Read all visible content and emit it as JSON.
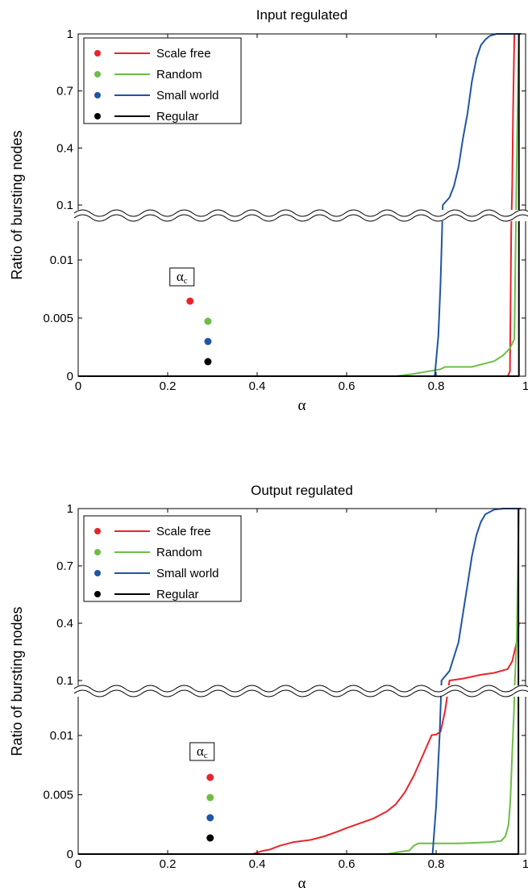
{
  "chart_data": [
    {
      "type": "line",
      "title": "Input regulated",
      "xlabel": "α",
      "ylabel": "Ratio of bursting nodes",
      "xlim": [
        0,
        1
      ],
      "x_ticks": [
        "0",
        "0.2",
        "0.4",
        "0.6",
        "0.8",
        "1"
      ],
      "y_ticks_lower": [
        "0",
        "0.005",
        "0.01"
      ],
      "y_ticks_upper": [
        "0.1",
        "0.4",
        "0.7",
        "1"
      ],
      "y_axis_note": "broken y-axis: linear 0–0.01 below the break, linear 0.1–1 above",
      "ylim_lower": [
        0,
        0.012
      ],
      "ylim_upper": [
        0.1,
        1
      ],
      "legend_position": "top-left",
      "alpha_c_label": "αc",
      "alpha_c_points": [
        {
          "series": "Scale free",
          "x": 0.25
        },
        {
          "series": "Random",
          "x": 0.29
        },
        {
          "series": "Small world",
          "x": 0.29
        },
        {
          "series": "Regular",
          "x": 0.29
        }
      ],
      "series": [
        {
          "name": "Scale free",
          "color": "#e8242a",
          "points": [
            [
              0,
              0
            ],
            [
              0.96,
              0
            ],
            [
              0.965,
              0.0004
            ],
            [
              0.968,
              0.06
            ],
            [
              0.97,
              0.2
            ],
            [
              0.972,
              0.6
            ],
            [
              0.975,
              1.0
            ],
            [
              0.99,
              1.0
            ]
          ]
        },
        {
          "name": "Random",
          "color": "#6dbd45",
          "points": [
            [
              0,
              0
            ],
            [
              0.71,
              0
            ],
            [
              0.75,
              0.0002
            ],
            [
              0.78,
              0.0004
            ],
            [
              0.81,
              0.0006
            ],
            [
              0.82,
              0.0008
            ],
            [
              0.88,
              0.0008
            ],
            [
              0.91,
              0.0011
            ],
            [
              0.93,
              0.0013
            ],
            [
              0.95,
              0.0018
            ],
            [
              0.965,
              0.0024
            ],
            [
              0.975,
              0.0032
            ],
            [
              0.978,
              0.05
            ],
            [
              0.98,
              0.3
            ],
            [
              0.985,
              1.0
            ],
            [
              0.99,
              1.0
            ]
          ]
        },
        {
          "name": "Small world",
          "color": "#2055a4",
          "points": [
            [
              0,
              0
            ],
            [
              0.797,
              0
            ],
            [
              0.805,
              0.0035
            ],
            [
              0.81,
              0.008
            ],
            [
              0.815,
              0.1
            ],
            [
              0.83,
              0.14
            ],
            [
              0.84,
              0.2
            ],
            [
              0.85,
              0.3
            ],
            [
              0.86,
              0.45
            ],
            [
              0.87,
              0.58
            ],
            [
              0.88,
              0.75
            ],
            [
              0.89,
              0.87
            ],
            [
              0.9,
              0.94
            ],
            [
              0.91,
              0.97
            ],
            [
              0.92,
              0.99
            ],
            [
              0.935,
              1.0
            ],
            [
              0.99,
              1.0
            ]
          ]
        },
        {
          "name": "Regular",
          "color": "#000000",
          "points": [
            [
              0,
              0
            ],
            [
              0.985,
              0
            ],
            [
              0.985,
              1.0
            ]
          ]
        }
      ]
    },
    {
      "type": "line",
      "title": "Output regulated",
      "xlabel": "α",
      "ylabel": "Ratio of bursting nodes",
      "xlim": [
        0,
        1
      ],
      "x_ticks": [
        "0",
        "0.2",
        "0.4",
        "0.6",
        "0.8",
        "1"
      ],
      "y_ticks_lower": [
        "0",
        "0.005",
        "0.01"
      ],
      "y_ticks_upper": [
        "0.1",
        "0.4",
        "0.7",
        "1"
      ],
      "y_axis_note": "broken y-axis: linear 0–0.01 below the break, linear 0.1–1 above",
      "ylim_lower": [
        0,
        0.012
      ],
      "ylim_upper": [
        0.1,
        1
      ],
      "legend_position": "top-left",
      "alpha_c_label": "αc",
      "alpha_c_points": [
        {
          "series": "Scale free",
          "x": 0.295
        },
        {
          "series": "Random",
          "x": 0.295
        },
        {
          "series": "Small world",
          "x": 0.295
        },
        {
          "series": "Regular",
          "x": 0.295
        }
      ],
      "series": [
        {
          "name": "Scale free",
          "color": "#e8242a",
          "points": [
            [
              0,
              0
            ],
            [
              0.39,
              0
            ],
            [
              0.41,
              0.00025
            ],
            [
              0.43,
              0.0004
            ],
            [
              0.45,
              0.0007
            ],
            [
              0.48,
              0.001
            ],
            [
              0.52,
              0.0012
            ],
            [
              0.55,
              0.0015
            ],
            [
              0.58,
              0.0019
            ],
            [
              0.6,
              0.0022
            ],
            [
              0.63,
              0.0026
            ],
            [
              0.66,
              0.003
            ],
            [
              0.69,
              0.0036
            ],
            [
              0.71,
              0.0042
            ],
            [
              0.73,
              0.0052
            ],
            [
              0.75,
              0.0066
            ],
            [
              0.77,
              0.0083
            ],
            [
              0.79,
              0.0105
            ],
            [
              0.8,
              0.0115
            ],
            [
              0.81,
              0.016
            ],
            [
              0.82,
              0.05
            ],
            [
              0.83,
              0.1
            ],
            [
              0.86,
              0.11
            ],
            [
              0.9,
              0.13
            ],
            [
              0.93,
              0.14
            ],
            [
              0.96,
              0.16
            ],
            [
              0.97,
              0.2
            ],
            [
              0.98,
              0.3
            ],
            [
              0.985,
              0.4
            ],
            [
              0.99,
              0.4
            ]
          ]
        },
        {
          "name": "Random",
          "color": "#6dbd45",
          "points": [
            [
              0,
              0
            ],
            [
              0.69,
              0
            ],
            [
              0.72,
              0.0002
            ],
            [
              0.74,
              0.0003
            ],
            [
              0.75,
              0.0007
            ],
            [
              0.76,
              0.0009
            ],
            [
              0.85,
              0.0009
            ],
            [
              0.92,
              0.001
            ],
            [
              0.945,
              0.0011
            ],
            [
              0.955,
              0.0015
            ],
            [
              0.962,
              0.0025
            ],
            [
              0.966,
              0.0045
            ],
            [
              0.97,
              0.0085
            ],
            [
              0.974,
              0.05
            ],
            [
              0.976,
              0.1
            ],
            [
              0.98,
              0.3
            ],
            [
              0.985,
              1.0
            ],
            [
              0.99,
              1.0
            ]
          ]
        },
        {
          "name": "Small world",
          "color": "#2055a4",
          "points": [
            [
              0,
              0
            ],
            [
              0.792,
              0
            ],
            [
              0.8,
              0.004
            ],
            [
              0.808,
              0.011
            ],
            [
              0.812,
              0.1
            ],
            [
              0.83,
              0.15
            ],
            [
              0.85,
              0.3
            ],
            [
              0.86,
              0.45
            ],
            [
              0.87,
              0.6
            ],
            [
              0.88,
              0.75
            ],
            [
              0.89,
              0.86
            ],
            [
              0.9,
              0.93
            ],
            [
              0.91,
              0.97
            ],
            [
              0.93,
              0.995
            ],
            [
              0.95,
              1.0
            ],
            [
              0.99,
              1.0
            ]
          ]
        },
        {
          "name": "Regular",
          "color": "#000000",
          "points": [
            [
              0,
              0
            ],
            [
              0.984,
              0
            ],
            [
              0.984,
              1.0
            ]
          ]
        }
      ]
    }
  ]
}
